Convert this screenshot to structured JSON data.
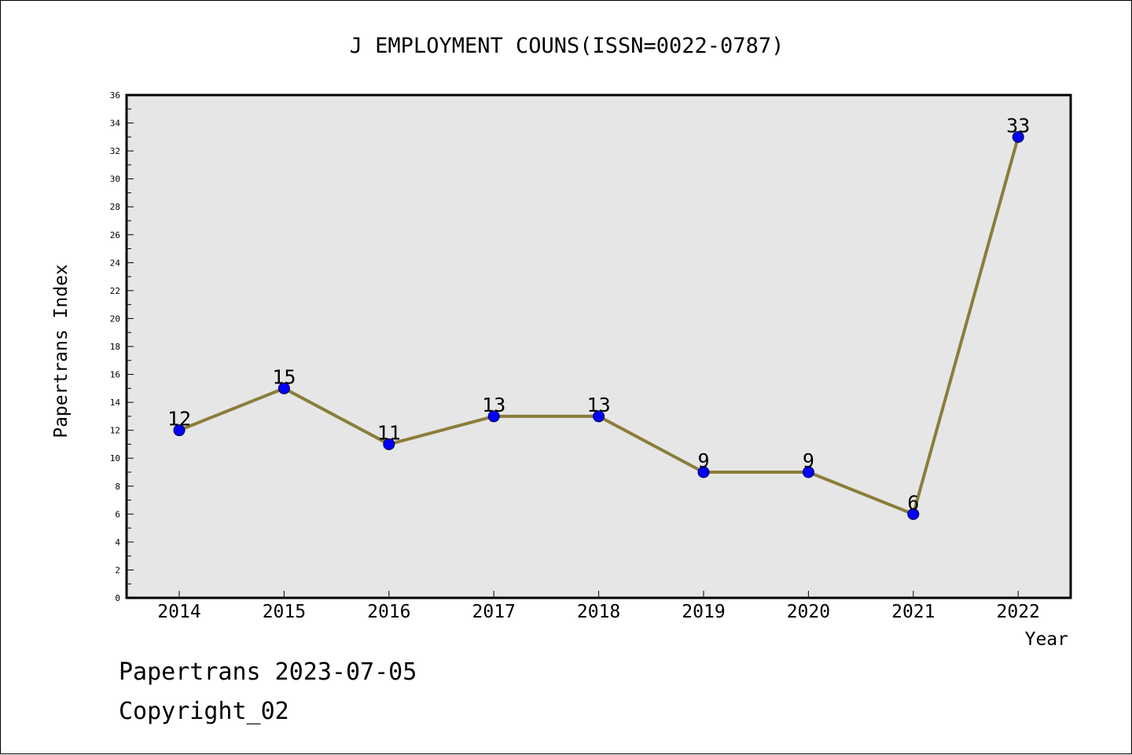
{
  "chart_data": {
    "type": "line",
    "title": "J EMPLOYMENT COUNS(ISSN=0022-0787)",
    "xlabel": "Year",
    "ylabel": "Papertrans Index",
    "categories": [
      "2014",
      "2015",
      "2016",
      "2017",
      "2018",
      "2019",
      "2020",
      "2021",
      "2022"
    ],
    "series": [
      {
        "values": [
          12,
          15,
          11,
          13,
          13,
          9,
          9,
          6,
          33
        ]
      }
    ],
    "ylim": [
      0,
      36
    ],
    "y_ticks": [
      "0",
      "2",
      "4",
      "6",
      "8",
      "10",
      "12",
      "14",
      "16",
      "18",
      "20",
      "22",
      "24",
      "26",
      "28",
      "30",
      "32",
      "34",
      "36"
    ],
    "grid": false,
    "legend": "none",
    "line_color": "#8B7D3A",
    "marker_color": "#0000FF",
    "plot_background": "#E6E6E6"
  },
  "footer": {
    "line1": "Papertrans 2023-07-05",
    "line2": "Copyright_02"
  }
}
